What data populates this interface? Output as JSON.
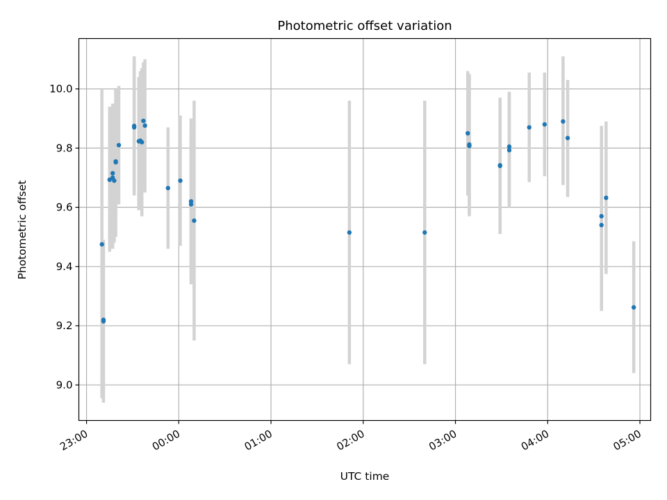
{
  "chart_data": {
    "type": "scatter",
    "title": "Photometric offset variation",
    "xlabel": "UTC time",
    "ylabel": "Photometric offset",
    "xlim": [
      "22:55",
      "05:07"
    ],
    "ylim": [
      8.88,
      10.17
    ],
    "x_ticks": [
      "23:00",
      "00:00",
      "01:00",
      "02:00",
      "03:00",
      "04:00",
      "05:00"
    ],
    "y_ticks": [
      "9.0",
      "9.2",
      "9.4",
      "9.6",
      "9.8",
      "10.0"
    ],
    "grid": true,
    "colors": {
      "point": "#1f77b4",
      "errorbar": "#d3d3d3",
      "grid": "#b0b0b0"
    },
    "points": [
      {
        "x": "23:10",
        "y": 9.475,
        "yerr_low": 8.955,
        "yerr_high": 10.0
      },
      {
        "x": "23:11",
        "y": 9.215,
        "yerr_low": 8.94,
        "yerr_high": 9.49
      },
      {
        "x": "23:11",
        "y": 9.22,
        "yerr_low": 8.95,
        "yerr_high": 9.49
      },
      {
        "x": "23:15",
        "y": 9.693,
        "yerr_low": 9.45,
        "yerr_high": 9.94
      },
      {
        "x": "23:17",
        "y": 9.715,
        "yerr_low": 9.47,
        "yerr_high": 9.95
      },
      {
        "x": "23:17",
        "y": 9.7,
        "yerr_low": 9.46,
        "yerr_high": 9.94
      },
      {
        "x": "23:18",
        "y": 9.69,
        "yerr_low": 9.48,
        "yerr_high": 9.93
      },
      {
        "x": "23:19",
        "y": 9.755,
        "yerr_low": 9.5,
        "yerr_high": 10.0
      },
      {
        "x": "23:19",
        "y": 9.752,
        "yerr_low": 9.51,
        "yerr_high": 10.0
      },
      {
        "x": "23:21",
        "y": 9.81,
        "yerr_low": 9.61,
        "yerr_high": 10.01
      },
      {
        "x": "23:31",
        "y": 9.87,
        "yerr_low": 9.64,
        "yerr_high": 10.11
      },
      {
        "x": "23:31",
        "y": 9.875,
        "yerr_low": 9.65,
        "yerr_high": 10.1
      },
      {
        "x": "23:34",
        "y": 9.823,
        "yerr_low": 9.59,
        "yerr_high": 10.04
      },
      {
        "x": "23:35",
        "y": 9.825,
        "yerr_low": 9.6,
        "yerr_high": 10.06
      },
      {
        "x": "23:36",
        "y": 9.82,
        "yerr_low": 9.57,
        "yerr_high": 10.07
      },
      {
        "x": "23:37",
        "y": 9.892,
        "yerr_low": 9.69,
        "yerr_high": 10.09
      },
      {
        "x": "23:38",
        "y": 9.876,
        "yerr_low": 9.65,
        "yerr_high": 10.1
      },
      {
        "x": "23:53",
        "y": 9.665,
        "yerr_low": 9.46,
        "yerr_high": 9.87
      },
      {
        "x": "00:01",
        "y": 9.69,
        "yerr_low": 9.47,
        "yerr_high": 9.91
      },
      {
        "x": "00:08",
        "y": 9.61,
        "yerr_low": 9.36,
        "yerr_high": 9.86
      },
      {
        "x": "00:08",
        "y": 9.62,
        "yerr_low": 9.34,
        "yerr_high": 9.9
      },
      {
        "x": "00:10",
        "y": 9.555,
        "yerr_low": 9.15,
        "yerr_high": 9.96
      },
      {
        "x": "01:51",
        "y": 9.515,
        "yerr_low": 9.07,
        "yerr_high": 9.96
      },
      {
        "x": "02:40",
        "y": 9.515,
        "yerr_low": 9.07,
        "yerr_high": 9.96
      },
      {
        "x": "03:08",
        "y": 9.85,
        "yerr_low": 9.64,
        "yerr_high": 10.06
      },
      {
        "x": "03:09",
        "y": 9.812,
        "yerr_low": 9.57,
        "yerr_high": 10.05
      },
      {
        "x": "03:09",
        "y": 9.807,
        "yerr_low": 9.58,
        "yerr_high": 10.04
      },
      {
        "x": "03:29",
        "y": 9.742,
        "yerr_low": 9.51,
        "yerr_high": 9.97
      },
      {
        "x": "03:29",
        "y": 9.74,
        "yerr_low": 9.51,
        "yerr_high": 9.97
      },
      {
        "x": "03:35",
        "y": 9.805,
        "yerr_low": 9.61,
        "yerr_high": 9.99
      },
      {
        "x": "03:35",
        "y": 9.793,
        "yerr_low": 9.6,
        "yerr_high": 9.99
      },
      {
        "x": "03:48",
        "y": 9.87,
        "yerr_low": 9.685,
        "yerr_high": 10.055
      },
      {
        "x": "03:58",
        "y": 9.88,
        "yerr_low": 9.705,
        "yerr_high": 10.055
      },
      {
        "x": "04:10",
        "y": 9.89,
        "yerr_low": 9.675,
        "yerr_high": 10.11
      },
      {
        "x": "04:13",
        "y": 9.834,
        "yerr_low": 9.635,
        "yerr_high": 10.03
      },
      {
        "x": "04:35",
        "y": 9.57,
        "yerr_low": 9.25,
        "yerr_high": 9.875
      },
      {
        "x": "04:35",
        "y": 9.54,
        "yerr_low": 9.26,
        "yerr_high": 9.87
      },
      {
        "x": "04:38",
        "y": 9.632,
        "yerr_low": 9.375,
        "yerr_high": 9.89
      },
      {
        "x": "04:56",
        "y": 9.262,
        "yerr_low": 9.04,
        "yerr_high": 9.485
      }
    ]
  }
}
